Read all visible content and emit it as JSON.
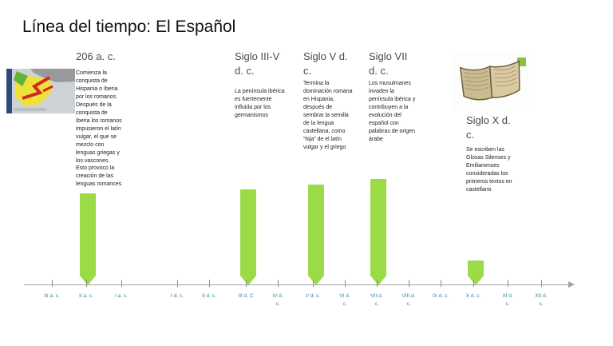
{
  "slide": {
    "title": "Línea del tiempo: El Español"
  },
  "events": [
    {
      "heading": "206 a. c.",
      "body": "Comienza la conquista de Hispania o Iberia por los romanos. Después de la conquista de Iberia los romanos impusieron el latín vulgar, el que se mezclo con lenguas griegas y los vascones. Esto provoco la creación de las lenguas romances"
    },
    {
      "heading": "Siglo III-V d. c.",
      "body": "La península ibérica es fuertemente influida por los germanismos"
    },
    {
      "heading": "Siglo V d. c.",
      "body": "Termina la dominación romana en Hispania, después de sembrar la semilla de la lengua castellana, como “hija” de el latín vulgar y el griego"
    },
    {
      "heading": "Siglo VII d. c.",
      "body": "Los musulmanes invaden la península ibérica y contribuyen a la evolución del español con palabras de origen árabe"
    },
    {
      "heading": "Siglo X d. c.",
      "body": "Se escriben las Glosas Silenses y Emilianenses consideradas los primeros textos en castellano"
    }
  ],
  "axis": {
    "labels": [
      "III a. c.",
      "II a. c.",
      "I a. c.",
      "I d. c.",
      "II d. c.",
      "III d. C",
      "IV d.\nc.",
      "V d. c.",
      "VI d.\nc.",
      "VII d.\nc.",
      "VIII d.\nc.",
      "IX d. c.",
      "X d. c.",
      "XI d.\nc.",
      "XII d.\nc,"
    ]
  },
  "icons": {
    "map": "iberia-map",
    "book": "manuscript-book"
  },
  "colors": {
    "marker_green": "#9cdb48",
    "axis_label_teal": "#31849b"
  }
}
